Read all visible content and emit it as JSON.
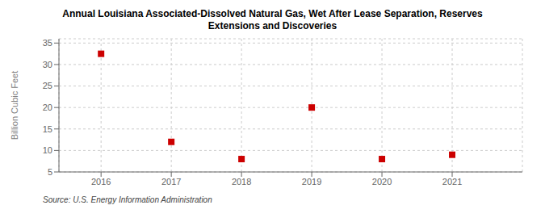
{
  "chart_data": {
    "type": "scatter",
    "title": "Annual Louisiana Associated-Dissolved Natural Gas, Wet After Lease Separation, Reserves\nExtensions and Discoveries",
    "ylabel": "Billion Cubic Feet",
    "annotations": [
      "Source: U.S. Energy Information Administration"
    ],
    "x": [
      2016,
      2017,
      2018,
      2019,
      2020,
      2021
    ],
    "values": [
      32.5,
      12.0,
      8.0,
      20.0,
      8.0,
      9.0
    ],
    "xlim": [
      2015.4,
      2022.0
    ],
    "ylim": [
      5,
      36
    ],
    "xticks": [
      2016,
      2017,
      2018,
      2019,
      2020,
      2021
    ],
    "yticks": [
      5,
      10,
      15,
      20,
      25,
      30,
      35
    ],
    "color": "#cc0000",
    "marker": "square",
    "grid": true
  }
}
